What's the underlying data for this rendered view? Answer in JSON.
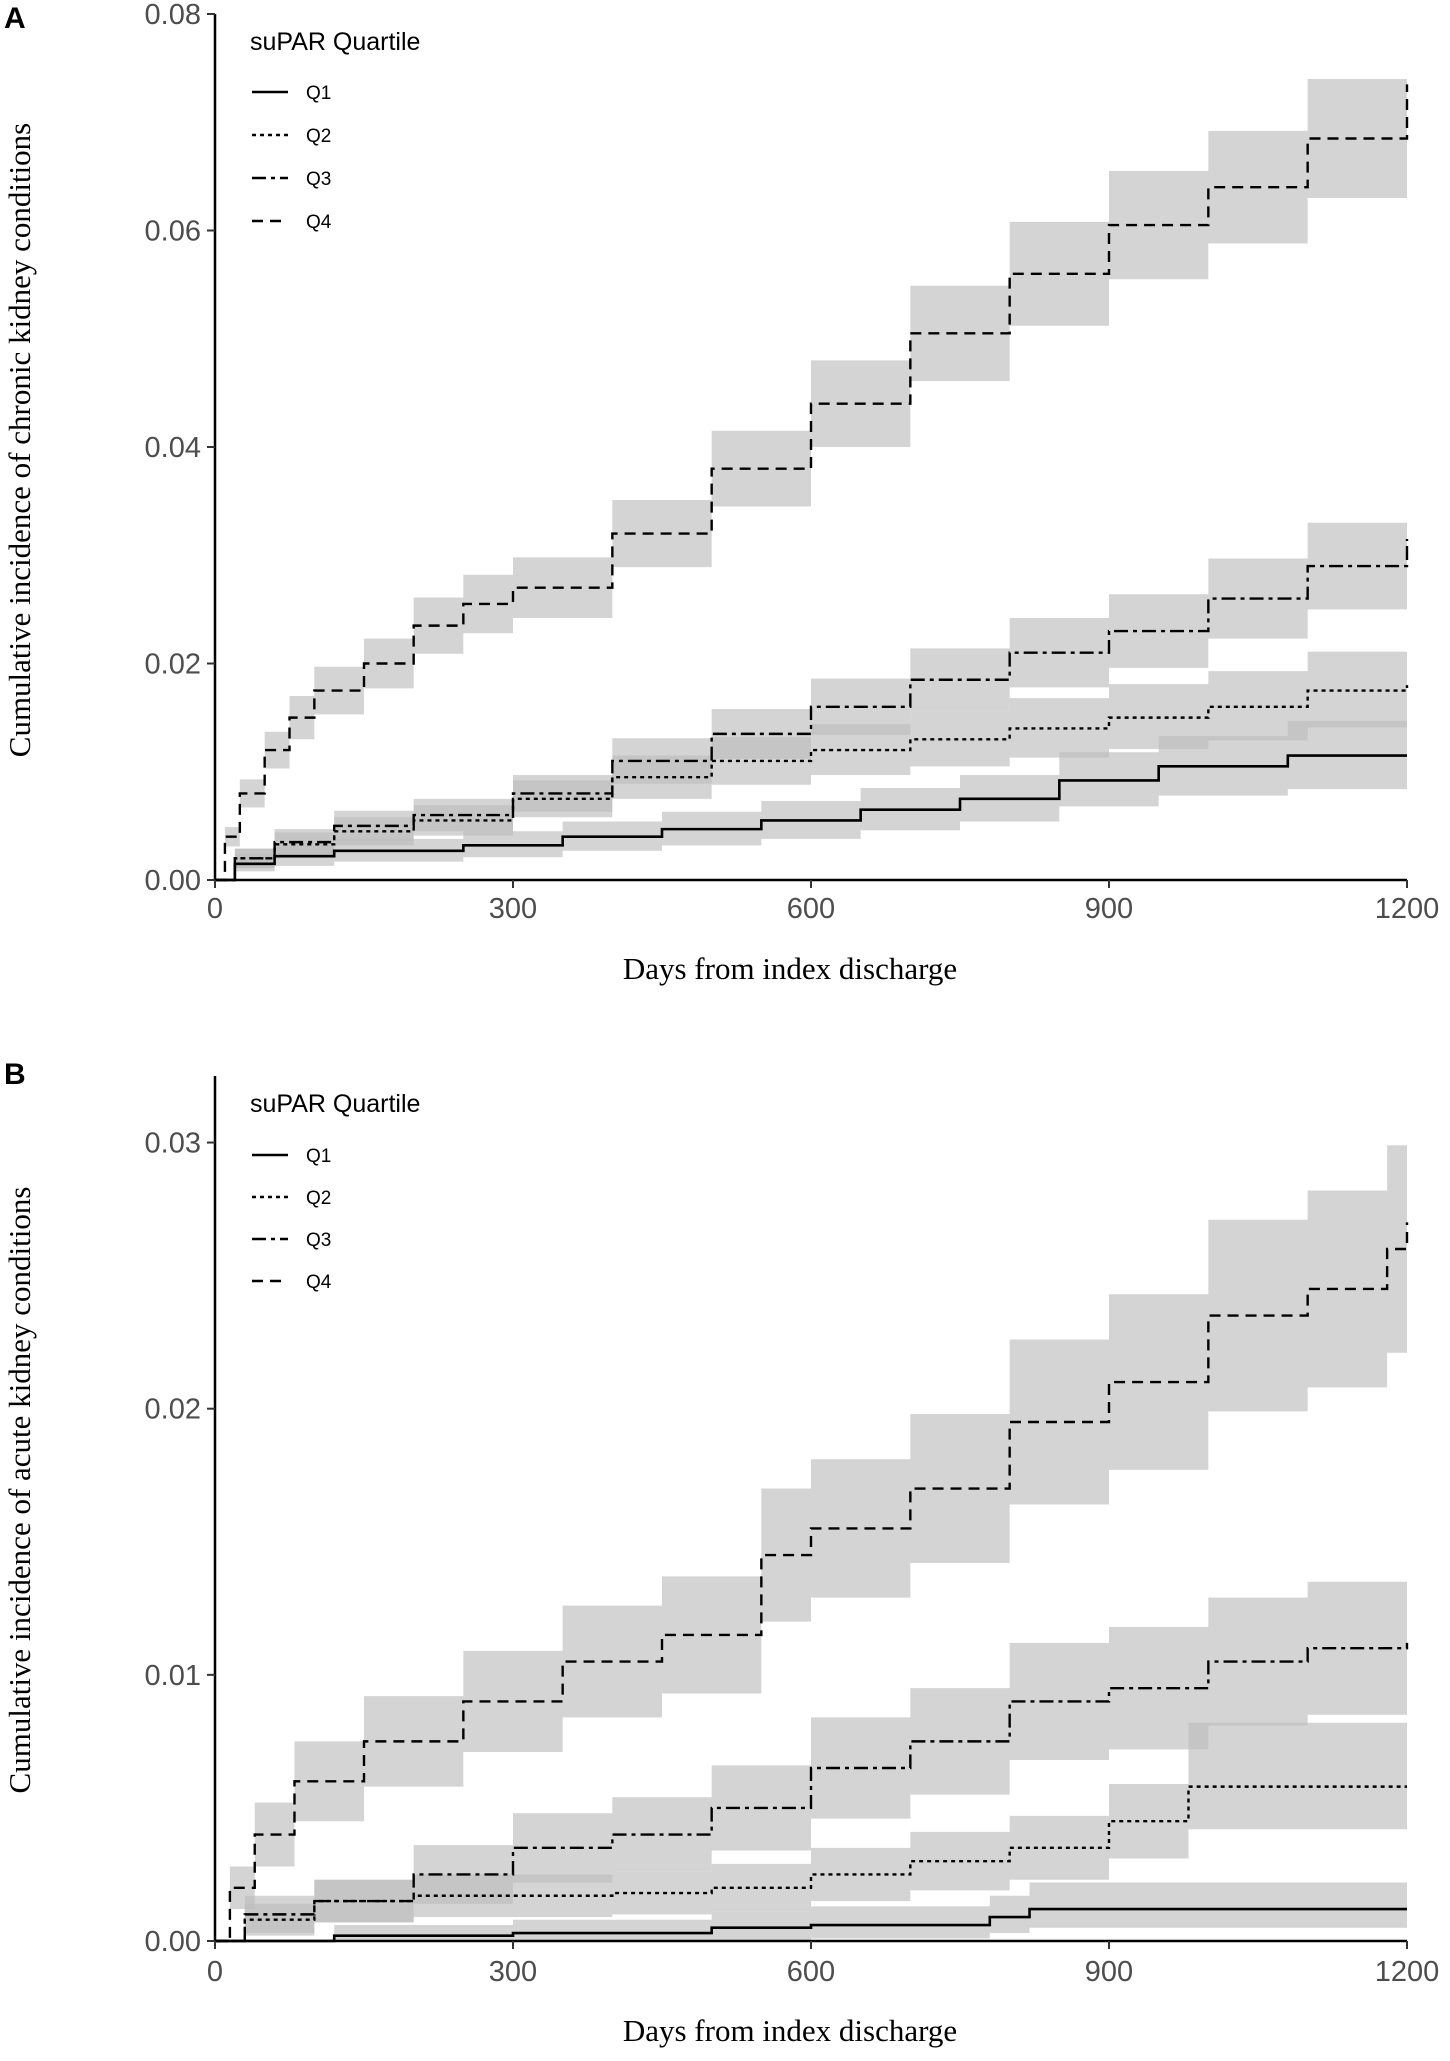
{
  "chart_data": [
    {
      "panel": "A",
      "type": "line",
      "step": true,
      "xlabel": "Days from index discharge",
      "ylabel": "Cumulative incidence of chronic kidney conditions",
      "xlim": [
        0,
        1200
      ],
      "ylim": [
        0,
        0.08
      ],
      "xticks": [
        "0",
        "300",
        "600",
        "900",
        "1200"
      ],
      "yticks": [
        "0.00",
        "0.02",
        "0.04",
        "0.06",
        "0.08"
      ],
      "legend": {
        "title": "suPAR Quartile",
        "position": "top-left",
        "entries": [
          "Q1",
          "Q2",
          "Q3",
          "Q4"
        ]
      },
      "series": [
        {
          "name": "Q1",
          "style": "solid",
          "x": [
            0,
            20,
            60,
            120,
            250,
            350,
            450,
            550,
            650,
            750,
            850,
            950,
            1080,
            1200
          ],
          "y": [
            0,
            0.0015,
            0.0022,
            0.0027,
            0.0032,
            0.004,
            0.0047,
            0.0055,
            0.0065,
            0.0075,
            0.0092,
            0.0105,
            0.0115,
            0.0115
          ],
          "lower": [
            0,
            0.0008,
            0.0013,
            0.0017,
            0.0021,
            0.0027,
            0.0032,
            0.0038,
            0.0046,
            0.0054,
            0.0068,
            0.0078,
            0.0084,
            0.0084
          ],
          "upper": [
            0,
            0.0024,
            0.0032,
            0.0038,
            0.0045,
            0.0054,
            0.0063,
            0.0073,
            0.0085,
            0.0097,
            0.0118,
            0.0133,
            0.0147,
            0.0147
          ]
        },
        {
          "name": "Q2",
          "style": "dotted",
          "x": [
            0,
            20,
            60,
            120,
            200,
            300,
            400,
            500,
            600,
            700,
            800,
            900,
            1000,
            1100,
            1200
          ],
          "y": [
            0,
            0.002,
            0.0033,
            0.0045,
            0.0055,
            0.0075,
            0.0095,
            0.011,
            0.012,
            0.013,
            0.014,
            0.015,
            0.016,
            0.0175,
            0.018
          ],
          "lower": [
            0,
            0.0011,
            0.0022,
            0.0032,
            0.0041,
            0.0058,
            0.0075,
            0.0088,
            0.0097,
            0.0105,
            0.0113,
            0.0121,
            0.0129,
            0.0141,
            0.0145
          ],
          "upper": [
            0,
            0.0029,
            0.0044,
            0.0058,
            0.0069,
            0.0092,
            0.0115,
            0.0132,
            0.0144,
            0.0156,
            0.0168,
            0.0181,
            0.0193,
            0.0211,
            0.0225
          ]
        },
        {
          "name": "Q3",
          "style": "dashdot",
          "x": [
            0,
            20,
            60,
            120,
            200,
            300,
            400,
            500,
            600,
            700,
            800,
            900,
            1000,
            1100,
            1200
          ],
          "y": [
            0,
            0.002,
            0.0035,
            0.005,
            0.006,
            0.008,
            0.011,
            0.0135,
            0.016,
            0.0185,
            0.021,
            0.023,
            0.026,
            0.029,
            0.0315
          ],
          "lower": [
            0,
            0.0011,
            0.0023,
            0.0036,
            0.0045,
            0.0063,
            0.0089,
            0.0112,
            0.0134,
            0.0156,
            0.0178,
            0.0196,
            0.0223,
            0.025,
            0.0255
          ],
          "upper": [
            0,
            0.0029,
            0.0047,
            0.0064,
            0.0075,
            0.0097,
            0.0131,
            0.0158,
            0.0186,
            0.0214,
            0.0242,
            0.0264,
            0.0297,
            0.033,
            0.0375
          ]
        },
        {
          "name": "Q4",
          "style": "dashed",
          "x": [
            0,
            10,
            25,
            50,
            75,
            100,
            150,
            200,
            250,
            300,
            400,
            500,
            600,
            700,
            800,
            900,
            1000,
            1100,
            1200
          ],
          "y": [
            0,
            0.004,
            0.008,
            0.012,
            0.015,
            0.0175,
            0.02,
            0.0235,
            0.0255,
            0.027,
            0.032,
            0.038,
            0.044,
            0.0505,
            0.056,
            0.0605,
            0.064,
            0.0685,
            0.0735
          ],
          "lower": [
            0,
            0.0031,
            0.0067,
            0.0103,
            0.013,
            0.0153,
            0.0177,
            0.0209,
            0.0228,
            0.0242,
            0.0289,
            0.0345,
            0.04,
            0.0461,
            0.0512,
            0.0555,
            0.0588,
            0.063,
            0.0635
          ],
          "upper": [
            0,
            0.0049,
            0.0093,
            0.0137,
            0.017,
            0.0197,
            0.0223,
            0.0261,
            0.0282,
            0.0298,
            0.0351,
            0.0415,
            0.048,
            0.0549,
            0.0608,
            0.0655,
            0.0692,
            0.074,
            0.0805
          ]
        }
      ]
    },
    {
      "panel": "B",
      "type": "line",
      "step": true,
      "xlabel": "Days from index discharge",
      "ylabel": "Cumulative incidence of acute kidney conditions",
      "xlim": [
        0,
        1200
      ],
      "ylim": [
        0,
        0.0325
      ],
      "xticks": [
        "0",
        "300",
        "600",
        "900",
        "1200"
      ],
      "yticks": [
        "0.00",
        "0.01",
        "0.02",
        "0.03"
      ],
      "legend": {
        "title": "suPAR Quartile",
        "position": "top-left",
        "entries": [
          "Q1",
          "Q2",
          "Q3",
          "Q4"
        ]
      },
      "series": [
        {
          "name": "Q1",
          "style": "solid",
          "x": [
            0,
            120,
            300,
            500,
            600,
            780,
            820,
            1000,
            1200
          ],
          "y": [
            0,
            0.0002,
            0.0003,
            0.0005,
            0.0006,
            0.0009,
            0.0012,
            0.0012,
            0.0012
          ],
          "lower": [
            0,
            0,
            0,
            0,
            0.0001,
            0.0003,
            0.0005,
            0.0005,
            0.0005
          ],
          "upper": [
            0,
            0.0006,
            0.0008,
            0.0011,
            0.0013,
            0.0017,
            0.0022,
            0.0022,
            0.0022
          ]
        },
        {
          "name": "Q2",
          "style": "dotted",
          "x": [
            0,
            30,
            100,
            200,
            300,
            400,
            500,
            600,
            700,
            800,
            900,
            980,
            1100,
            1200
          ],
          "y": [
            0,
            0.0008,
            0.0015,
            0.0017,
            0.0017,
            0.0018,
            0.002,
            0.0025,
            0.003,
            0.0035,
            0.0045,
            0.0058,
            0.0058,
            0.0058
          ],
          "lower": [
            0,
            0.0002,
            0.0007,
            0.0009,
            0.0009,
            0.001,
            0.0011,
            0.0015,
            0.0019,
            0.0023,
            0.0031,
            0.0042,
            0.0042,
            0.0035
          ],
          "upper": [
            0,
            0.0014,
            0.0023,
            0.0025,
            0.0025,
            0.0026,
            0.0029,
            0.0035,
            0.0041,
            0.0047,
            0.0059,
            0.0082,
            0.0082,
            0.0082
          ]
        },
        {
          "name": "Q3",
          "style": "dashdot",
          "x": [
            0,
            30,
            100,
            200,
            300,
            400,
            500,
            600,
            700,
            800,
            900,
            1000,
            1100,
            1200
          ],
          "y": [
            0,
            0.001,
            0.0015,
            0.0025,
            0.0035,
            0.004,
            0.005,
            0.0065,
            0.0075,
            0.009,
            0.0095,
            0.0105,
            0.011,
            0.0112
          ],
          "lower": [
            0,
            0.0003,
            0.0007,
            0.0014,
            0.0022,
            0.0026,
            0.0034,
            0.0046,
            0.0055,
            0.0068,
            0.0072,
            0.0081,
            0.0085,
            0.0075
          ],
          "upper": [
            0,
            0.0017,
            0.0023,
            0.0036,
            0.0048,
            0.0054,
            0.0066,
            0.0084,
            0.0095,
            0.0112,
            0.0118,
            0.0129,
            0.0135,
            0.0149
          ]
        },
        {
          "name": "Q4",
          "style": "dashed",
          "x": [
            0,
            15,
            40,
            80,
            150,
            250,
            350,
            450,
            550,
            600,
            700,
            800,
            900,
            1000,
            1100,
            1180,
            1200
          ],
          "y": [
            0,
            0.002,
            0.004,
            0.006,
            0.0075,
            0.009,
            0.0105,
            0.0115,
            0.0145,
            0.0155,
            0.017,
            0.0195,
            0.021,
            0.0235,
            0.0245,
            0.026,
            0.027
          ],
          "lower": [
            0,
            0.0012,
            0.0028,
            0.0045,
            0.0058,
            0.0071,
            0.0084,
            0.0093,
            0.012,
            0.0129,
            0.0142,
            0.0164,
            0.0177,
            0.0199,
            0.0208,
            0.0221,
            0.0213
          ],
          "upper": [
            0,
            0.0028,
            0.0052,
            0.0075,
            0.0092,
            0.0109,
            0.0126,
            0.0137,
            0.017,
            0.0181,
            0.0198,
            0.0226,
            0.0243,
            0.0271,
            0.0282,
            0.0299,
            0.0325
          ]
        }
      ]
    }
  ]
}
